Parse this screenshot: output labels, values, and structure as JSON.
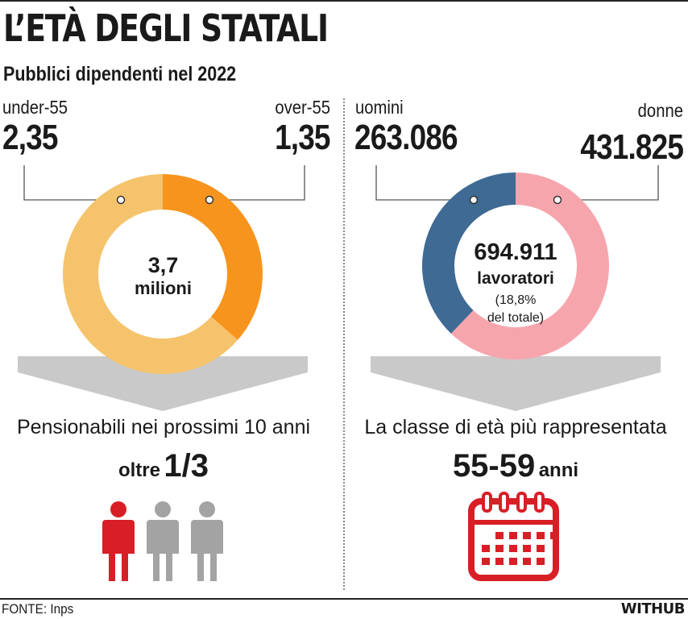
{
  "header": {
    "title": "L’ETÀ DEGLI STATALI",
    "subtitle": "Pubblici dipendenti nel 2022"
  },
  "left_panel": {
    "label_a": "under-55",
    "value_a": "2,35",
    "label_b": "over-55",
    "value_b": "1,35",
    "center_value": "3,7",
    "center_unit": "milioni",
    "caption": "Pensionabili nei prossimi 10 anni",
    "highlight_prefix": "oltre",
    "highlight_value": "1/3",
    "icon": "person-icons-one-of-three-highlighted"
  },
  "right_panel": {
    "label_a": "uomini",
    "value_a": "263.086",
    "label_b": "donne",
    "value_b": "431.825",
    "center_value": "694.911",
    "center_unit": "lavoratori",
    "center_note_1": "(18,8%",
    "center_note_2": "del totale)",
    "caption": "La classe di età più rappresentata",
    "highlight_value": "55-59",
    "highlight_suffix": "anni",
    "icon": "calendar-icon"
  },
  "footer": {
    "source": "FONTE: Inps",
    "brand": "WITHUB"
  },
  "colors": {
    "under55": "#f5c36b",
    "over55": "#f7941d",
    "uomini": "#3e6a94",
    "donne": "#f7a5ad",
    "highlight": "#d81f26",
    "muted": "#a3a3a3",
    "arrow": "#c9c9c9"
  },
  "chart_data": [
    {
      "type": "pie",
      "categories": [
        "under-55",
        "over-55"
      ],
      "values": [
        2.35,
        1.35
      ],
      "total_label": "3,7 milioni"
    },
    {
      "type": "pie",
      "categories": [
        "uomini",
        "donne"
      ],
      "values": [
        263086,
        431825
      ],
      "total_label": "694.911 lavoratori"
    }
  ]
}
